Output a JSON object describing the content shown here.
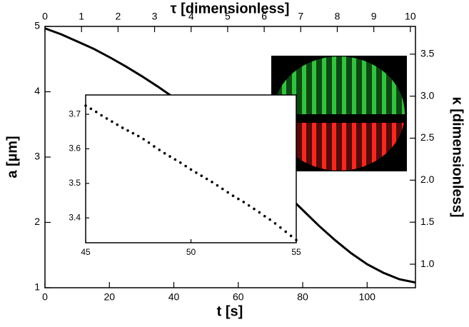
{
  "chart_data": [
    {
      "type": "line",
      "xlabel": "t [s]",
      "ylabel": "a [µm]",
      "x2label": "τ [dimensionless]",
      "y2label": "κ [dimensionless]",
      "xlim": [
        0,
        115
      ],
      "xticks": [
        0,
        20,
        40,
        60,
        80,
        100
      ],
      "ylim": [
        1,
        5
      ],
      "yticks": [
        1,
        2,
        3,
        4,
        5
      ],
      "x2lim": [
        0,
        10.14
      ],
      "x2ticks": [
        0,
        1,
        2,
        3,
        4,
        5,
        6,
        7,
        8,
        9,
        10
      ],
      "y2lim": [
        0.72,
        3.83
      ],
      "y2ticks": [
        {
          "value": 1,
          "label": "1.0"
        },
        1.5,
        {
          "value": 2,
          "label": "2.0"
        },
        2.5,
        {
          "value": 3,
          "label": "3.0"
        },
        3.5
      ],
      "series": [
        {
          "color": "#000000",
          "x": [
            0,
            5,
            10,
            15,
            20,
            25,
            30,
            35,
            40,
            45,
            50,
            55,
            60,
            65,
            70,
            75,
            80,
            85,
            90,
            95,
            100,
            105,
            110,
            115
          ],
          "values": [
            4.97,
            4.88,
            4.77,
            4.66,
            4.53,
            4.39,
            4.24,
            4.08,
            3.91,
            3.725,
            3.54,
            3.335,
            3.12,
            2.9,
            2.67,
            2.43,
            2.19,
            1.95,
            1.73,
            1.53,
            1.36,
            1.23,
            1.13,
            1.08
          ]
        }
      ]
    },
    {
      "type": "scatter",
      "xlim": [
        45,
        55
      ],
      "xticks": [
        45,
        50,
        55
      ],
      "ylim": [
        3.328,
        3.756
      ],
      "yticks": [
        3.4,
        3.5,
        3.6,
        3.7
      ],
      "series": [
        {
          "color": "#000000",
          "x": [
            45,
            45.25,
            45.5,
            45.75,
            46,
            46.25,
            46.5,
            46.75,
            47,
            47.25,
            47.5,
            47.75,
            48,
            48.25,
            48.5,
            48.75,
            49,
            49.25,
            49.5,
            49.75,
            50,
            50.25,
            50.5,
            50.75,
            51,
            51.25,
            51.5,
            51.75,
            52,
            52.25,
            52.5,
            52.75,
            53,
            53.25,
            53.5,
            53.75,
            54,
            54.25,
            54.5,
            54.75,
            55
          ],
          "values": [
            3.725,
            3.716,
            3.707,
            3.697,
            3.688,
            3.679,
            3.67,
            3.661,
            3.653,
            3.645,
            3.637,
            3.628,
            3.618,
            3.607,
            3.597,
            3.587,
            3.578,
            3.569,
            3.56,
            3.55,
            3.54,
            3.531,
            3.522,
            3.513,
            3.504,
            3.494,
            3.484,
            3.474,
            3.464,
            3.455,
            3.446,
            3.436,
            3.426,
            3.416,
            3.405,
            3.395,
            3.384,
            3.372,
            3.36,
            3.348,
            3.336
          ]
        }
      ]
    }
  ]
}
